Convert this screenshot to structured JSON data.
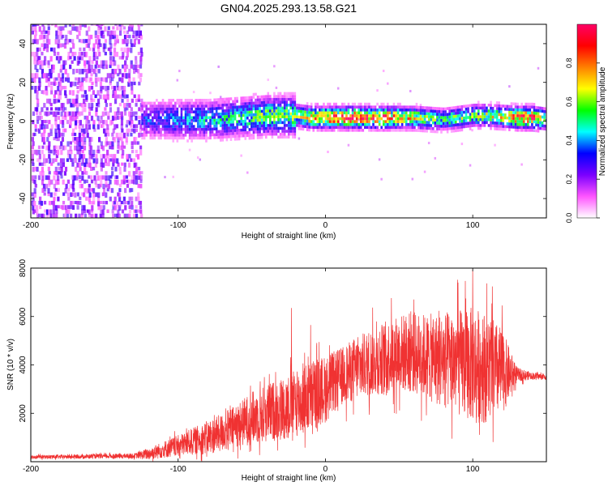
{
  "figure": {
    "title": "GN04.2025.293.13.58.G21"
  },
  "chart_data": [
    {
      "type": "heatmap",
      "title": "GN04.2025.293.13.58.G21",
      "xlabel": "Height of straight line (km)",
      "ylabel": "Frequency (Hz)",
      "xlim": [
        -200,
        150
      ],
      "ylim": [
        -50,
        50
      ],
      "x_ticks": [
        -200,
        -100,
        0,
        100
      ],
      "x_tick_labels": [
        "-200",
        "-100",
        "0",
        "100"
      ],
      "y_ticks": [
        -40,
        -20,
        0,
        20,
        40
      ],
      "y_tick_labels": [
        "-40",
        "-20",
        "0",
        "20",
        "40"
      ],
      "colorbar": {
        "label": "Normalized spectral amplitude",
        "range": [
          0,
          1
        ],
        "ticks": [
          0.0,
          0.2,
          0.4,
          0.6,
          0.8
        ],
        "tick_labels": [
          "0.0",
          "0.2",
          "0.4",
          "0.6",
          "0.8"
        ],
        "colormap": [
          "#ffffff",
          "#ff55ff",
          "#7a00ff",
          "#0000ff",
          "#00ffff",
          "#00ff00",
          "#ffff00",
          "#ff8000",
          "#ff0000",
          "#ff0066"
        ]
      },
      "ridge": {
        "x": [
          -125,
          -115,
          -100,
          -80,
          -60,
          -50,
          -40,
          -30,
          -20,
          -10,
          0,
          20,
          40,
          60,
          70,
          80,
          90,
          100,
          110,
          120,
          130,
          140,
          150
        ],
        "freq": [
          0,
          0,
          0,
          0,
          1,
          1.5,
          2,
          2,
          2,
          1,
          1,
          1,
          1,
          1,
          0.5,
          0,
          1,
          2,
          2,
          1.5,
          1,
          1,
          0
        ],
        "amplitude": [
          0.35,
          0.35,
          0.4,
          0.45,
          0.5,
          0.55,
          0.6,
          0.6,
          0.6,
          0.8,
          0.9,
          0.95,
          0.9,
          0.7,
          0.6,
          0.55,
          0.6,
          0.6,
          0.65,
          0.7,
          0.9,
          0.95,
          0.5
        ]
      },
      "noise_region": {
        "x_start": -200,
        "x_end": -125,
        "amplitude": 0.2
      }
    },
    {
      "type": "line",
      "xlabel": "Height of straight line (km)",
      "ylabel": "SNR (10 * v/v)",
      "xlim": [
        -200,
        150
      ],
      "ylim": [
        0,
        8000
      ],
      "x_ticks": [
        -200,
        -100,
        0,
        100
      ],
      "x_tick_labels": [
        "-200",
        "-100",
        "0",
        "100"
      ],
      "y_ticks": [
        2000,
        4000,
        6000,
        8000
      ],
      "y_tick_labels": [
        "2000",
        "4000",
        "6000",
        "8000"
      ],
      "color": "#f03232",
      "series": [
        {
          "name": "SNR",
          "x": [
            -200,
            -180,
            -160,
            -140,
            -130,
            -120,
            -110,
            -100,
            -90,
            -80,
            -70,
            -60,
            -50,
            -40,
            -30,
            -20,
            -10,
            0,
            10,
            20,
            30,
            40,
            50,
            60,
            70,
            80,
            90,
            100,
            110,
            120,
            130,
            140,
            150
          ],
          "y": [
            200,
            200,
            220,
            230,
            240,
            320,
            500,
            650,
            850,
            1000,
            1200,
            1500,
            1800,
            2000,
            2200,
            2400,
            2700,
            3000,
            3500,
            3800,
            4100,
            4300,
            4500,
            4500,
            4300,
            4200,
            4100,
            4000,
            3900,
            3700,
            3600,
            3550,
            3500
          ],
          "noise": [
            80,
            80,
            90,
            100,
            100,
            250,
            350,
            450,
            550,
            700,
            800,
            900,
            1100,
            1200,
            1300,
            1400,
            1500,
            1400,
            1200,
            1300,
            1400,
            1500,
            1600,
            1700,
            1800,
            2000,
            2200,
            2400,
            2300,
            1800,
            300,
            150,
            120
          ],
          "peaks": [
            {
              "x": -23,
              "y": 6350
            },
            {
              "x": -10,
              "y": 5650
            },
            {
              "x": 60,
              "y": 6700
            },
            {
              "x": 90,
              "y": 7400
            },
            {
              "x": 100,
              "y": 7950
            }
          ]
        }
      ]
    }
  ]
}
